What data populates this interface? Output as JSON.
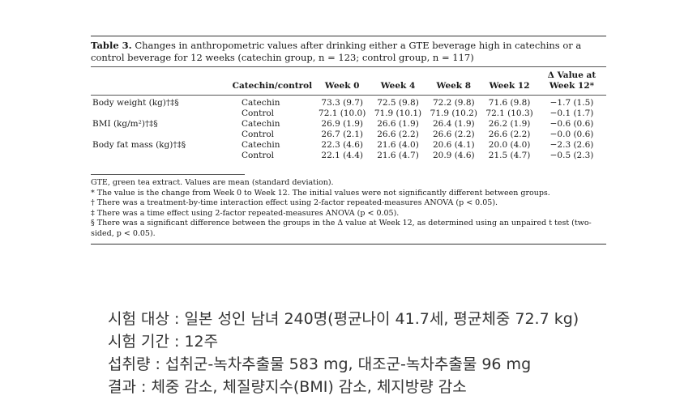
{
  "table": {
    "caption_label": "Table 3.",
    "caption_text": "Changes in anthropometric values after drinking either a GTE beverage high in catechins or a control beverage for 12 weeks (catechin group, n = 123; control group, n = 117)",
    "headers": {
      "group": "Catechin/control",
      "week0": "Week 0",
      "week4": "Week 4",
      "week8": "Week 8",
      "week12": "Week 12",
      "delta_line1": "Δ Value at",
      "delta_line2": "Week 12*"
    },
    "rows": [
      {
        "variable": "Body weight (kg)†‡§",
        "catechin": {
          "group": "Catechin",
          "week0": "73.3 (9.7)",
          "week4": "72.5 (9.8)",
          "week8": "72.2 (9.8)",
          "week12": "71.6 (9.8)",
          "delta": "−1.7 (1.5)"
        },
        "control": {
          "group": "Control",
          "week0": "72.1 (10.0)",
          "week4": "71.9 (10.1)",
          "week8": "71.9 (10.2)",
          "week12": "72.1 (10.3)",
          "delta": "−0.1 (1.7)"
        }
      },
      {
        "variable": "BMI (kg/m²)†‡§",
        "catechin": {
          "group": "Catechin",
          "week0": "26.9 (1.9)",
          "week4": "26.6 (1.9)",
          "week8": "26.4 (1.9)",
          "week12": "26.2 (1.9)",
          "delta": "−0.6 (0.6)"
        },
        "control": {
          "group": "Control",
          "week0": "26.7 (2.1)",
          "week4": "26.6 (2.2)",
          "week8": "26.6 (2.2)",
          "week12": "26.6 (2.2)",
          "delta": "−0.0 (0.6)"
        }
      },
      {
        "variable": "Body fat mass (kg)†‡§",
        "catechin": {
          "group": "Catechin",
          "week0": "22.3 (4.6)",
          "week4": "21.6 (4.0)",
          "week8": "20.6 (4.1)",
          "week12": "20.0 (4.0)",
          "delta": "−2.3 (2.6)"
        },
        "control": {
          "group": "Control",
          "week0": "22.1 (4.4)",
          "week4": "21.6 (4.7)",
          "week8": "20.9 (4.6)",
          "week12": "21.5 (4.7)",
          "delta": "−0.5 (2.3)"
        }
      }
    ],
    "footnotes": [
      "GTE, green tea extract. Values are mean (standard deviation).",
      "* The value is the change from Week 0 to Week 12. The initial values were not significantly different between groups.",
      "† There was a treatment-by-time interaction effect using 2-factor repeated-measures ANOVA (p < 0.05).",
      "‡ There was a time effect using 2-factor repeated-measures ANOVA (p < 0.05).",
      "§ There was a significant difference between the groups in the Δ value at Week 12, as determined using an unpaired t test (two-sided, p < 0.05)."
    ]
  },
  "summary": [
    "시험 대상 : 일본 성인 남녀 240명(평균나이 41.7세, 평균체중 72.7 kg)",
    "시험 기간 : 12주",
    "섭취량 : 섭취군-녹차추출물 583 mg, 대조군-녹차추출물 96 mg",
    "결과 : 체중 감소, 체질량지수(BMI) 감소, 체지방량 감소"
  ]
}
